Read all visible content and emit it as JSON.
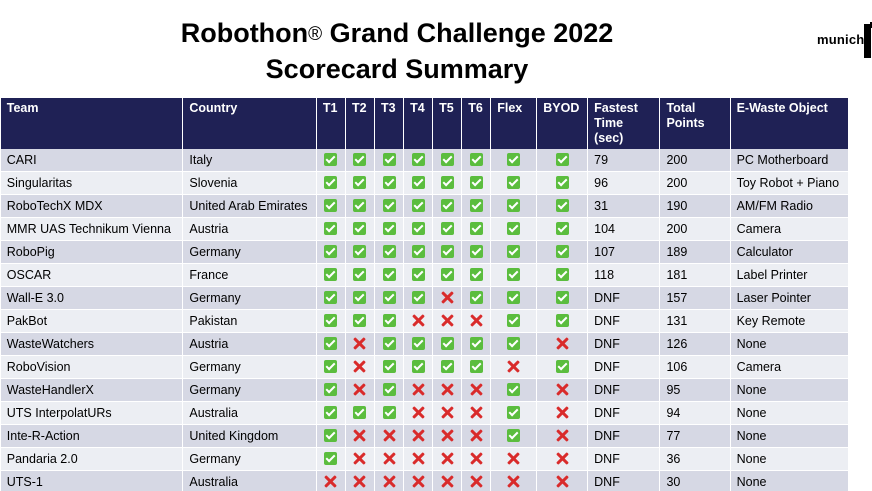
{
  "title": {
    "line1_prefix": "Robothon",
    "line1_reg": "®",
    "line1_suffix": " Grand Challenge 2022",
    "line2": "Scorecard Summary"
  },
  "logo": {
    "text": "munich"
  },
  "table": {
    "headers": [
      "Team",
      "Country",
      "T1",
      "T2",
      "T3",
      "T4",
      "T5",
      "T6",
      "Flex",
      "BYOD",
      "Fastest Time (sec)",
      "Total Points",
      "E-Waste Object"
    ],
    "rows": [
      {
        "team": "CARI",
        "country": "Italy",
        "marks": [
          "check",
          "check",
          "check",
          "check",
          "check",
          "check",
          "check",
          "check"
        ],
        "time": "79",
        "points": "200",
        "object": "PC Motherboard"
      },
      {
        "team": "Singularitas",
        "country": "Slovenia",
        "marks": [
          "check",
          "check",
          "check",
          "check",
          "check",
          "check",
          "check",
          "check"
        ],
        "time": "96",
        "points": "200",
        "object": "Toy Robot + Piano"
      },
      {
        "team": "RoboTechX MDX",
        "country": "United Arab Emirates",
        "marks": [
          "check",
          "check",
          "check",
          "check",
          "check",
          "check",
          "check",
          "check"
        ],
        "time": "31",
        "points": "190",
        "object": "AM/FM Radio"
      },
      {
        "team": "MMR UAS Technikum Vienna",
        "country": "Austria",
        "marks": [
          "check",
          "check",
          "check",
          "check",
          "check",
          "check",
          "check",
          "check"
        ],
        "time": "104",
        "points": "200",
        "object": "Camera"
      },
      {
        "team": "RoboPig",
        "country": "Germany",
        "marks": [
          "check",
          "check",
          "check",
          "check",
          "check",
          "check",
          "check",
          "check"
        ],
        "time": "107",
        "points": "189",
        "object": "Calculator"
      },
      {
        "team": "OSCAR",
        "country": "France",
        "marks": [
          "check",
          "check",
          "check",
          "check",
          "check",
          "check",
          "check",
          "check"
        ],
        "time": "118",
        "points": "181",
        "object": "Label Printer"
      },
      {
        "team": "Wall-E 3.0",
        "country": "Germany",
        "marks": [
          "check",
          "check",
          "check",
          "check",
          "cross",
          "check",
          "check",
          "check"
        ],
        "time": "DNF",
        "points": "157",
        "object": "Laser Pointer"
      },
      {
        "team": "PakBot",
        "country": "Pakistan",
        "marks": [
          "check",
          "check",
          "check",
          "cross",
          "cross",
          "cross",
          "check",
          "check"
        ],
        "time": "DNF",
        "points": "131",
        "object": "Key Remote"
      },
      {
        "team": "WasteWatchers",
        "country": "Austria",
        "marks": [
          "check",
          "cross",
          "check",
          "check",
          "check",
          "check",
          "check",
          "cross"
        ],
        "time": "DNF",
        "points": "126",
        "object": "None"
      },
      {
        "team": "RoboVision",
        "country": "Germany",
        "marks": [
          "check",
          "cross",
          "check",
          "check",
          "check",
          "check",
          "cross",
          "check"
        ],
        "time": "DNF",
        "points": "106",
        "object": "Camera"
      },
      {
        "team": "WasteHandlerX",
        "country": "Germany",
        "marks": [
          "check",
          "cross",
          "check",
          "cross",
          "cross",
          "cross",
          "check",
          "cross"
        ],
        "time": "DNF",
        "points": "95",
        "object": "None"
      },
      {
        "team": "UTS InterpolatURs",
        "country": "Australia",
        "marks": [
          "check",
          "check",
          "check",
          "cross",
          "cross",
          "cross",
          "check",
          "cross"
        ],
        "time": "DNF",
        "points": "94",
        "object": "None"
      },
      {
        "team": "Inte-R-Action",
        "country": "United Kingdom",
        "marks": [
          "check",
          "cross",
          "cross",
          "cross",
          "cross",
          "cross",
          "check",
          "cross"
        ],
        "time": "DNF",
        "points": "77",
        "object": "None"
      },
      {
        "team": "Pandaria 2.0",
        "country": "Germany",
        "marks": [
          "check",
          "cross",
          "cross",
          "cross",
          "cross",
          "cross",
          "cross",
          "cross"
        ],
        "time": "DNF",
        "points": "36",
        "object": "None"
      },
      {
        "team": "UTS-1",
        "country": "Australia",
        "marks": [
          "cross",
          "cross",
          "cross",
          "cross",
          "cross",
          "cross",
          "cross",
          "cross"
        ],
        "time": "DNF",
        "points": "30",
        "object": "None"
      }
    ]
  },
  "colors": {
    "header_bg": "#1f2155",
    "row_odd": "#d6d8e4",
    "row_even": "#eceef3",
    "check": "#5bbd3e",
    "cross": "#d92b2b"
  },
  "icons": {
    "check": "check-mark-icon",
    "cross": "cross-mark-icon"
  }
}
